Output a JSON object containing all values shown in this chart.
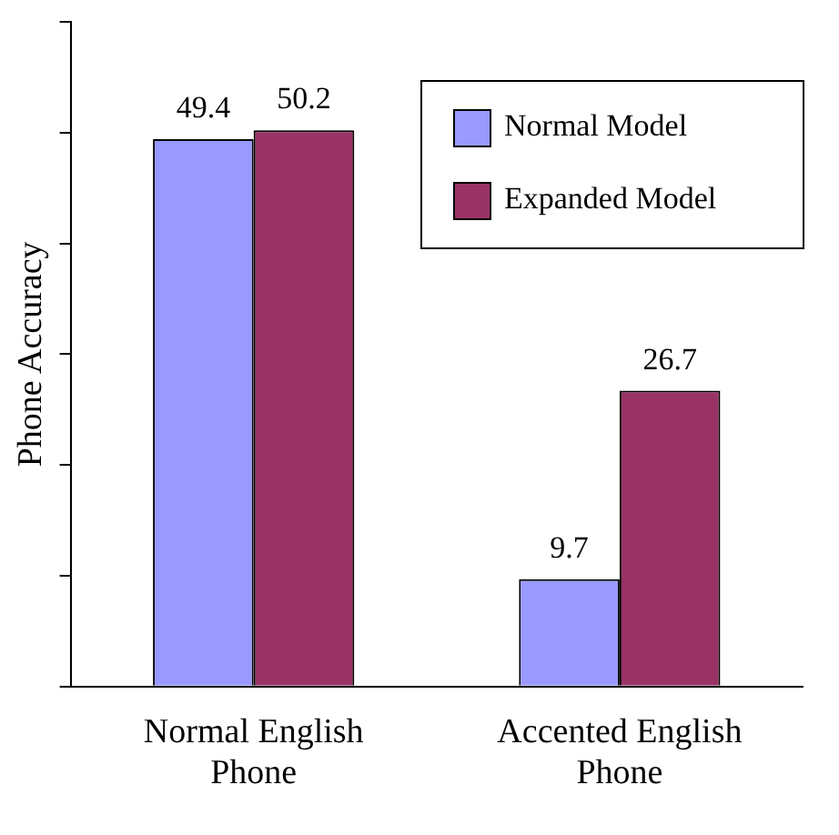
{
  "chart_data": {
    "type": "bar",
    "ylabel": "Phone Accuracy",
    "categories": [
      "Normal English Phone",
      "Accented English Phone"
    ],
    "series": [
      {
        "name": "Normal Model",
        "color": "#9999ff",
        "values": [
          49.4,
          9.7
        ]
      },
      {
        "name": "Expanded Model",
        "color": "#993366",
        "values": [
          50.2,
          26.7
        ]
      }
    ],
    "ylim": [
      0,
      60
    ],
    "yticks": [
      {
        "value": 0,
        "label": null
      },
      {
        "value": 10,
        "label": null
      },
      {
        "value": 20,
        "label": null
      },
      {
        "value": 30,
        "label": null
      },
      {
        "value": 40,
        "label": null
      },
      {
        "value": 50,
        "label": null
      },
      {
        "value": 60,
        "label": null
      }
    ],
    "tick_labels": "x",
    "grid": false,
    "data_labels": true,
    "legend": "top right"
  }
}
